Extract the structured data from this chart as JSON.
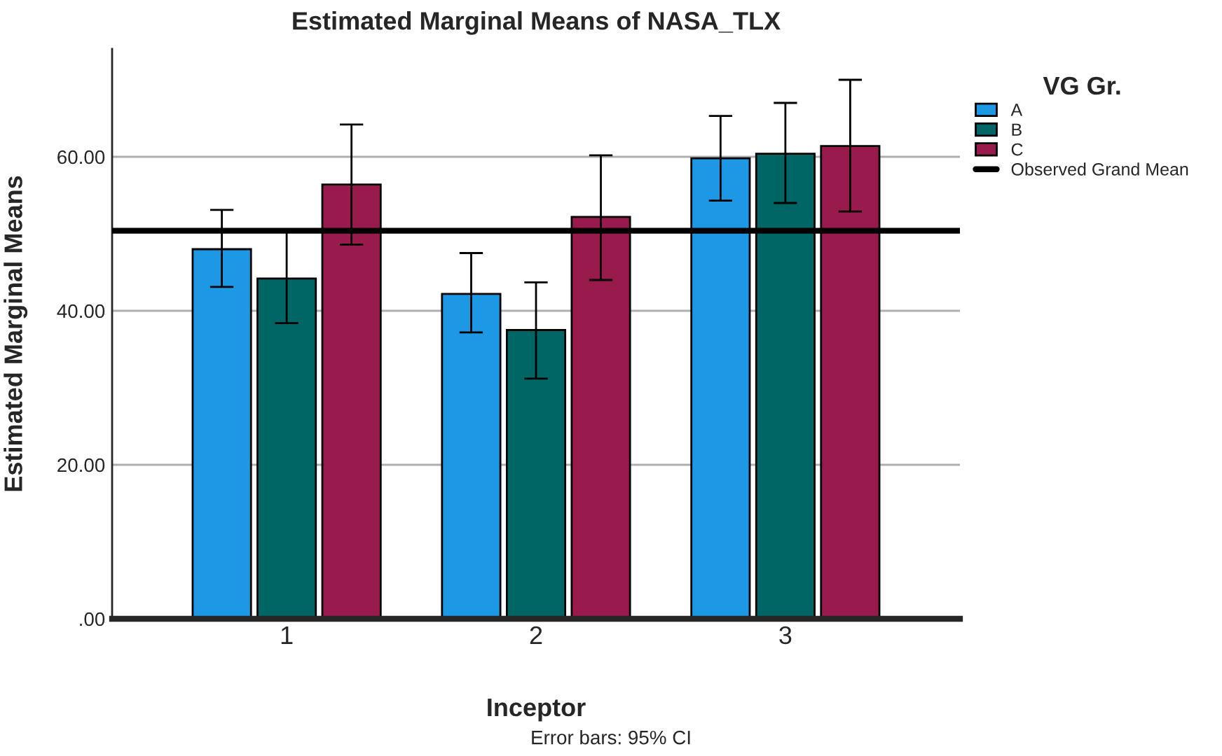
{
  "chart_data": {
    "type": "bar",
    "title": "Estimated Marginal Means of NASA_TLX",
    "xlabel": "Inceptor",
    "ylabel": "Estimated Marginal Means",
    "legend_title": "VG Gr.",
    "categories": [
      "1",
      "2",
      "3"
    ],
    "series": [
      {
        "name": "A",
        "color": "#1c98e4",
        "values": [
          48.0,
          42.2,
          59.8
        ],
        "errors": [
          [
            43.1,
            53.1
          ],
          [
            37.2,
            47.5
          ],
          [
            54.3,
            65.3
          ]
        ]
      },
      {
        "name": "B",
        "color": "#006665",
        "values": [
          44.2,
          37.5,
          60.4
        ],
        "errors": [
          [
            38.4,
            50.4
          ],
          [
            31.2,
            43.7
          ],
          [
            54.0,
            67.0
          ]
        ]
      },
      {
        "name": "C",
        "color": "#991b4e",
        "values": [
          56.4,
          52.2,
          61.4
        ],
        "errors": [
          [
            48.6,
            64.2
          ],
          [
            44.0,
            60.2
          ],
          [
            52.9,
            70.0
          ]
        ]
      }
    ],
    "ref_lines": [
      {
        "axis": "y",
        "value": 50.4,
        "label": "Observed Grand Mean",
        "color": "#000000"
      }
    ],
    "ylim": [
      0,
      74
    ],
    "yticks": [
      {
        "value": 0,
        "label": ".00"
      },
      {
        "value": 20,
        "label": "20.00"
      },
      {
        "value": 40,
        "label": "40.00"
      },
      {
        "value": 60,
        "label": "60.00"
      }
    ],
    "grid": "y",
    "legend": "top right",
    "annotations": [
      "Error bars: 95% CI"
    ]
  }
}
